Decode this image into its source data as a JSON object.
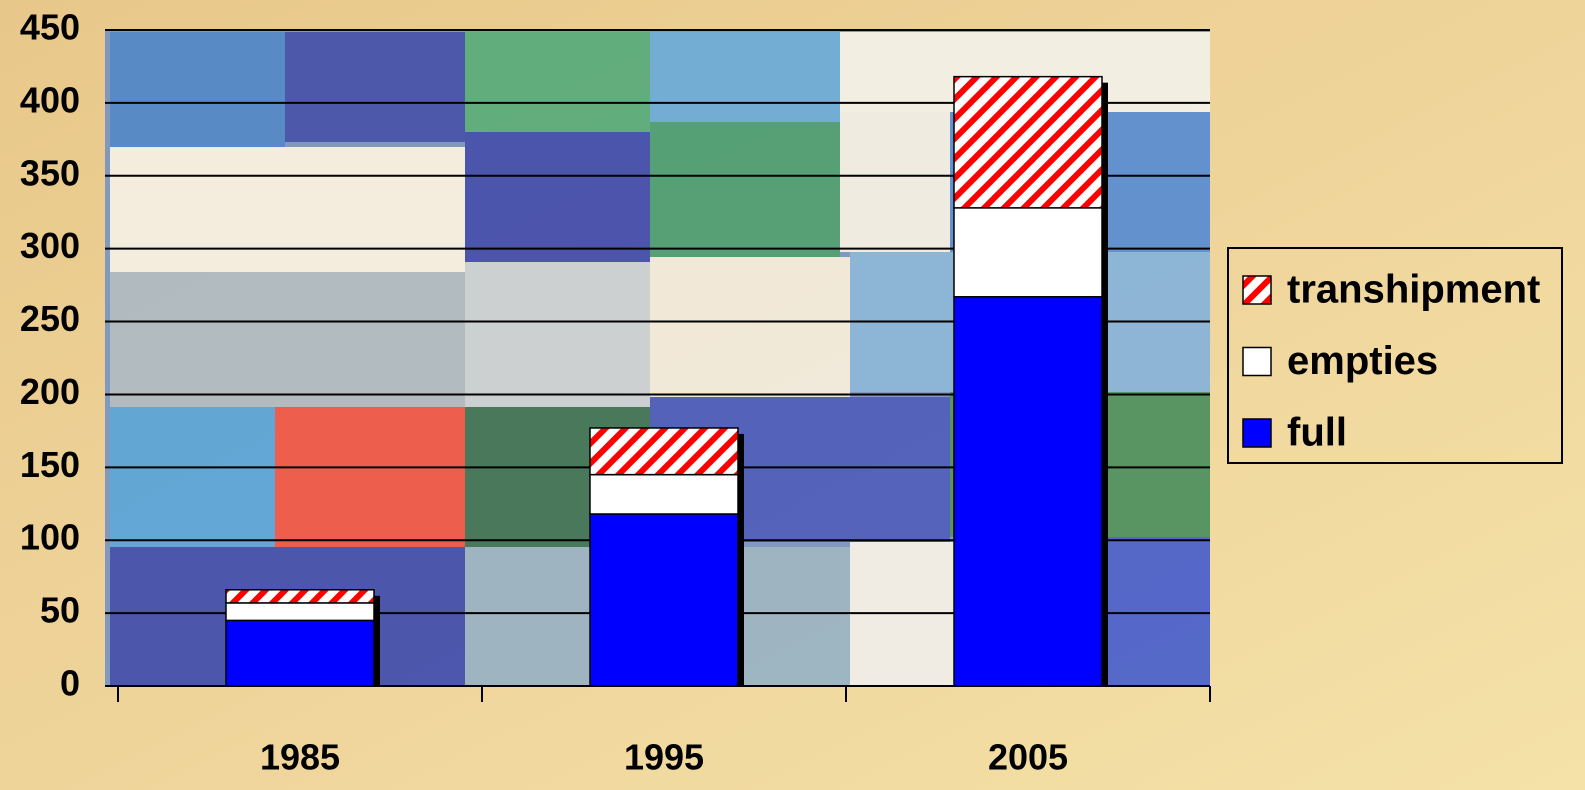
{
  "chart_data": {
    "type": "stacked-bar",
    "categories": [
      "1985",
      "1995",
      "2005"
    ],
    "series": [
      {
        "name": "full",
        "color": "#0000ff",
        "values": [
          45,
          118,
          267
        ]
      },
      {
        "name": "empties",
        "color": "#ffffff",
        "values": [
          12,
          27,
          61
        ]
      },
      {
        "name": "transhipment",
        "color": "#ff0000",
        "pattern": "diagonal-stripes",
        "values": [
          9,
          32,
          90
        ]
      }
    ],
    "ylim": [
      0,
      450
    ],
    "yticks": [
      0,
      50,
      100,
      150,
      200,
      250,
      300,
      350,
      400,
      450
    ],
    "grid": true,
    "legend": "right"
  }
}
